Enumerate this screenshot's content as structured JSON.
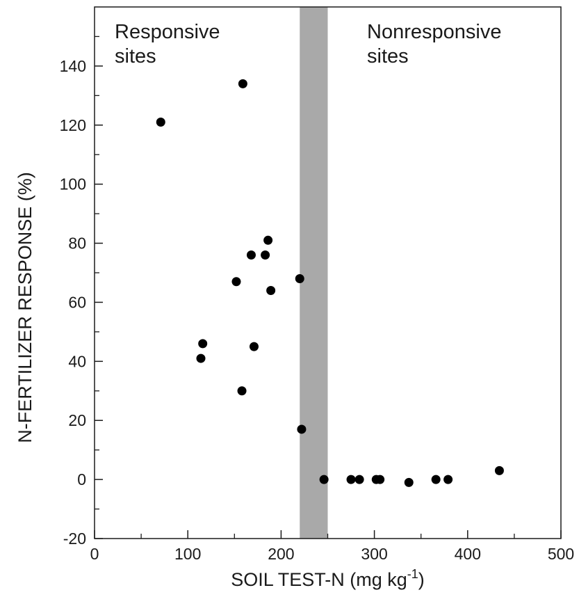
{
  "chart_data": {
    "type": "scatter",
    "title": "",
    "xlabel": "SOIL TEST-N (mg kg",
    "xlabel_superscript": "-1",
    "xlabel_suffix": ")",
    "ylabel": "N-FERTILIZER RESPONSE (%)",
    "xlim": [
      0,
      500
    ],
    "ylim": [
      -20,
      160
    ],
    "x_ticks": [
      0,
      100,
      200,
      300,
      400,
      500
    ],
    "x_tick_labels": [
      "0",
      "100",
      "200",
      "300",
      "400",
      "500"
    ],
    "y_ticks": [
      -20,
      0,
      20,
      40,
      60,
      80,
      100,
      120,
      140
    ],
    "y_tick_labels": [
      "-20",
      "0",
      "20",
      "40",
      "60",
      "80",
      "100",
      "120",
      "140"
    ],
    "x_minor_step": 50,
    "y_minor_step": 10,
    "grid": false,
    "shaded_band": {
      "x_from": 220,
      "x_to": 250,
      "color": "#a9a9a9"
    },
    "annotations": [
      {
        "line1": "Responsive",
        "line2": "sites",
        "position": "top-left"
      },
      {
        "line1": "Nonresponsive",
        "line2": "sites",
        "position": "top-right"
      }
    ],
    "marker_color": "#000000",
    "points": [
      {
        "x": 71,
        "y": 121
      },
      {
        "x": 159,
        "y": 134
      },
      {
        "x": 114,
        "y": 41
      },
      {
        "x": 116,
        "y": 46
      },
      {
        "x": 152,
        "y": 67
      },
      {
        "x": 158,
        "y": 30
      },
      {
        "x": 168,
        "y": 76
      },
      {
        "x": 171,
        "y": 45
      },
      {
        "x": 183,
        "y": 76
      },
      {
        "x": 186,
        "y": 81
      },
      {
        "x": 189,
        "y": 64
      },
      {
        "x": 220,
        "y": 68
      },
      {
        "x": 222,
        "y": 17
      },
      {
        "x": 246,
        "y": 0
      },
      {
        "x": 275,
        "y": 0
      },
      {
        "x": 284,
        "y": 0
      },
      {
        "x": 302,
        "y": 0
      },
      {
        "x": 306,
        "y": 0
      },
      {
        "x": 337,
        "y": -1
      },
      {
        "x": 366,
        "y": 0
      },
      {
        "x": 379,
        "y": 0
      },
      {
        "x": 434,
        "y": 3
      }
    ]
  }
}
